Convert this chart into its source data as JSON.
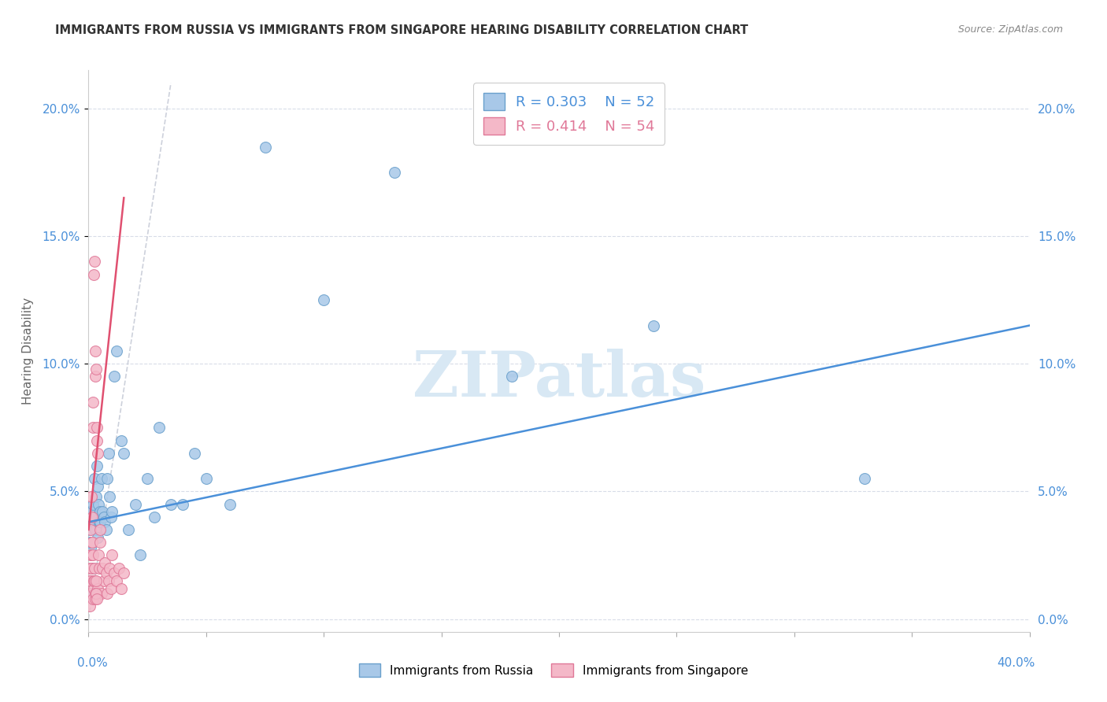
{
  "title": "IMMIGRANTS FROM RUSSIA VS IMMIGRANTS FROM SINGAPORE HEARING DISABILITY CORRELATION CHART",
  "source": "Source: ZipAtlas.com",
  "ylabel": "Hearing Disability",
  "xlim": [
    0.0,
    40.0
  ],
  "ylim": [
    -0.5,
    21.5
  ],
  "ytick_vals": [
    0.0,
    5.0,
    10.0,
    15.0,
    20.0
  ],
  "russia_color": "#a8c8e8",
  "russia_edge": "#6aa0cc",
  "singapore_color": "#f4b8c8",
  "singapore_edge": "#e07898",
  "russia_R": 0.303,
  "russia_N": 52,
  "singapore_R": 0.414,
  "singapore_N": 54,
  "russia_line_color": "#4a90d9",
  "singapore_line_color": "#e05070",
  "dash_color": "#c8ccd8",
  "watermark_color": "#d8e8f4",
  "russia_line_x0": 0.0,
  "russia_line_y0": 3.8,
  "russia_line_x1": 40.0,
  "russia_line_y1": 11.5,
  "singapore_line_x0": 0.0,
  "singapore_line_y0": 3.5,
  "singapore_line_x1": 1.5,
  "singapore_line_y1": 16.5,
  "dash_x0": 0.0,
  "dash_y0": 0.0,
  "dash_x1": 3.5,
  "dash_y1": 21.0,
  "russia_points_x": [
    0.05,
    0.08,
    0.1,
    0.12,
    0.15,
    0.18,
    0.2,
    0.22,
    0.25,
    0.28,
    0.3,
    0.32,
    0.35,
    0.38,
    0.4,
    0.42,
    0.45,
    0.48,
    0.5,
    0.55,
    0.6,
    0.65,
    0.7,
    0.75,
    0.8,
    0.85,
    0.9,
    0.95,
    1.0,
    1.1,
    1.2,
    1.4,
    1.5,
    1.7,
    2.0,
    2.2,
    2.5,
    2.8,
    3.0,
    3.5,
    4.0,
    4.5,
    5.0,
    6.0,
    7.5,
    10.0,
    13.0,
    18.0,
    24.0,
    33.0,
    0.06,
    0.09
  ],
  "russia_points_y": [
    3.5,
    2.8,
    4.2,
    3.0,
    2.0,
    1.5,
    4.5,
    3.8,
    5.5,
    4.0,
    3.5,
    4.8,
    6.0,
    3.2,
    5.2,
    4.5,
    3.8,
    4.2,
    3.8,
    5.5,
    4.2,
    4.0,
    3.8,
    3.5,
    5.5,
    6.5,
    4.8,
    4.0,
    4.2,
    9.5,
    10.5,
    7.0,
    6.5,
    3.5,
    4.5,
    2.5,
    5.5,
    4.0,
    7.5,
    4.5,
    4.5,
    6.5,
    5.5,
    4.5,
    18.5,
    12.5,
    17.5,
    9.5,
    11.5,
    5.5,
    3.0,
    1.0
  ],
  "singapore_points_x": [
    0.04,
    0.05,
    0.06,
    0.07,
    0.08,
    0.09,
    0.1,
    0.11,
    0.12,
    0.13,
    0.14,
    0.15,
    0.16,
    0.17,
    0.18,
    0.19,
    0.2,
    0.21,
    0.22,
    0.23,
    0.24,
    0.25,
    0.26,
    0.27,
    0.28,
    0.3,
    0.32,
    0.34,
    0.36,
    0.38,
    0.4,
    0.42,
    0.45,
    0.48,
    0.5,
    0.55,
    0.6,
    0.65,
    0.7,
    0.75,
    0.8,
    0.85,
    0.9,
    0.95,
    1.0,
    1.1,
    1.2,
    1.3,
    1.4,
    1.5,
    0.29,
    0.31,
    0.33,
    0.35
  ],
  "singapore_points_y": [
    1.5,
    2.0,
    0.5,
    1.0,
    2.5,
    1.5,
    3.5,
    2.0,
    4.8,
    2.5,
    3.0,
    4.0,
    3.0,
    2.5,
    7.5,
    0.8,
    8.5,
    1.2,
    13.5,
    1.5,
    1.5,
    14.0,
    2.0,
    0.8,
    9.5,
    10.5,
    9.8,
    7.0,
    7.5,
    6.5,
    1.2,
    2.5,
    2.0,
    3.0,
    3.5,
    1.0,
    2.0,
    1.5,
    2.2,
    1.8,
    1.0,
    1.5,
    2.0,
    1.2,
    2.5,
    1.8,
    1.5,
    2.0,
    1.2,
    1.8,
    1.0,
    1.5,
    1.0,
    0.8
  ]
}
